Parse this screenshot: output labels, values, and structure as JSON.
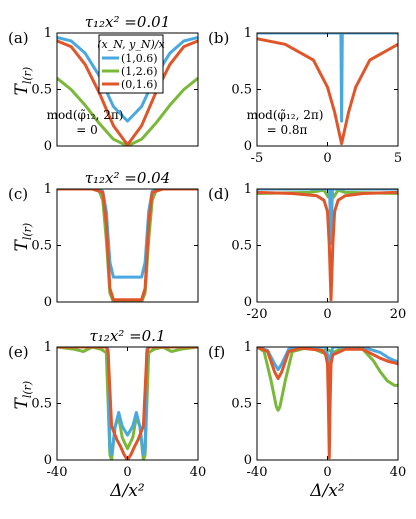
{
  "figure": {
    "ylabel": "T_{l(r)}",
    "xlabel": "Δ/x²",
    "legend_title": "(x_N, y_N)/x",
    "legend": [
      "(1,0.6)",
      "(1,2.6)",
      "(0,1.6)"
    ],
    "colors": [
      "#4aa8e0",
      "#7ab83a",
      "#e0562a"
    ]
  },
  "chart_data": [
    {
      "type": "line",
      "panel": "(a)",
      "title": "τ₁₂x² =0.01",
      "xlim": [
        -1,
        1
      ],
      "ylim": [
        0,
        1
      ],
      "xticks": [],
      "yticks": [
        0,
        0.5,
        1
      ],
      "annotation": [
        "mod(φ̃₁₂, 2π)",
        "= 0"
      ],
      "series": [
        {
          "name": "(1,0.6)",
          "x": [
            -1,
            -0.8,
            -0.6,
            -0.4,
            -0.2,
            0,
            0.2,
            0.4,
            0.6,
            0.8,
            1
          ],
          "y": [
            0.96,
            0.93,
            0.82,
            0.62,
            0.35,
            0.22,
            0.35,
            0.62,
            0.82,
            0.93,
            0.96
          ]
        },
        {
          "name": "(1,2.6)",
          "x": [
            -1,
            -0.8,
            -0.6,
            -0.4,
            -0.2,
            0,
            0.2,
            0.4,
            0.6,
            0.8,
            1
          ],
          "y": [
            0.6,
            0.5,
            0.36,
            0.2,
            0.06,
            0,
            0.06,
            0.2,
            0.36,
            0.5,
            0.6
          ]
        },
        {
          "name": "(0,1.6)",
          "x": [
            -1,
            -0.8,
            -0.6,
            -0.4,
            -0.2,
            0,
            0.2,
            0.4,
            0.6,
            0.8,
            1
          ],
          "y": [
            0.93,
            0.88,
            0.72,
            0.47,
            0.18,
            0.01,
            0.18,
            0.47,
            0.72,
            0.88,
            0.93
          ]
        }
      ]
    },
    {
      "type": "line",
      "panel": "(b)",
      "title": "",
      "xlim": [
        -5,
        5
      ],
      "ylim": [
        0,
        1
      ],
      "xticks": [
        -5,
        0,
        5
      ],
      "yticks": [
        0,
        0.5,
        1
      ],
      "annotation": [
        "mod(φ̃₁₂, 2π)",
        "= 0.8π"
      ],
      "series": [
        {
          "name": "(1,0.6)",
          "x": [
            -5,
            0.95,
            1,
            1.05,
            5
          ],
          "y": [
            1,
            1,
            0.22,
            1,
            1
          ]
        },
        {
          "name": "(1,2.6)",
          "x": [
            -5,
            5
          ],
          "y": [
            1,
            1
          ]
        },
        {
          "name": "(0,1.6)",
          "x": [
            -5,
            -3,
            -1,
            0,
            0.5,
            1,
            1.5,
            2,
            3,
            5
          ],
          "y": [
            0.95,
            0.9,
            0.76,
            0.52,
            0.3,
            0.02,
            0.3,
            0.52,
            0.76,
            0.9
          ]
        }
      ]
    },
    {
      "type": "line",
      "panel": "(c)",
      "title": "τ₁₂x² =0.04",
      "xlim": [
        -40,
        40
      ],
      "ylim": [
        0,
        1
      ],
      "xticks": [],
      "yticks": [
        0,
        0.5,
        1
      ],
      "series": [
        {
          "name": "(1,0.6)",
          "x": [
            -40,
            -20,
            -14,
            -12,
            -10,
            -8,
            8,
            10,
            12,
            14,
            20,
            40
          ],
          "y": [
            1,
            1,
            0.98,
            0.8,
            0.35,
            0.22,
            0.22,
            0.35,
            0.8,
            0.98,
            1,
            1
          ]
        },
        {
          "name": "(1,2.6)",
          "x": [
            -40,
            -20,
            -16,
            -14,
            -12,
            -10,
            -8,
            8,
            10,
            12,
            14,
            16,
            20,
            40
          ],
          "y": [
            1,
            1,
            0.98,
            0.9,
            0.55,
            0.08,
            0,
            0,
            0.08,
            0.55,
            0.9,
            0.98,
            1,
            1
          ]
        },
        {
          "name": "(0,1.6)",
          "x": [
            -40,
            -20,
            -14,
            -12,
            -10,
            -8,
            8,
            10,
            12,
            14,
            20,
            40
          ],
          "y": [
            1,
            1,
            0.97,
            0.7,
            0.12,
            0.02,
            0.02,
            0.12,
            0.7,
            0.97,
            1,
            1
          ]
        }
      ]
    },
    {
      "type": "line",
      "panel": "(d)",
      "title": "",
      "xlim": [
        -20,
        20
      ],
      "ylim": [
        0,
        1
      ],
      "xticks": [
        -20,
        0,
        20
      ],
      "yticks": [
        0,
        0.5,
        1
      ],
      "series": [
        {
          "name": "(1,0.6)",
          "x": [
            -20,
            0.6,
            1,
            1.4,
            20
          ],
          "y": [
            1,
            1,
            0.52,
            1,
            1
          ]
        },
        {
          "name": "(1,2.6)",
          "x": [
            -20,
            -5,
            -1,
            0.2,
            1,
            1.8,
            3,
            5,
            20
          ],
          "y": [
            0.96,
            0.97,
            0.99,
            0.93,
            1,
            0.93,
            0.99,
            0.97,
            0.96
          ]
        },
        {
          "name": "(0,1.6)",
          "x": [
            -20,
            -10,
            -3,
            -1,
            0,
            0.5,
            1,
            1.5,
            2,
            3,
            5,
            10,
            20
          ],
          "y": [
            0.97,
            0.96,
            0.94,
            0.9,
            0.8,
            0.5,
            0.02,
            0.5,
            0.8,
            0.9,
            0.94,
            0.96,
            0.97
          ]
        }
      ]
    },
    {
      "type": "line",
      "panel": "(e)",
      "title": "τ₁₂x² =0.1",
      "xlim": [
        -40,
        40
      ],
      "ylim": [
        0,
        1
      ],
      "xticks": [
        -40,
        0,
        40
      ],
      "yticks": [
        0,
        0.5,
        1
      ],
      "series": [
        {
          "name": "(1,0.6)",
          "x": [
            -40,
            -12,
            -11,
            -10,
            -9,
            -7,
            -5,
            -3,
            0,
            3,
            5,
            7,
            9,
            10,
            11,
            12,
            40
          ],
          "y": [
            1,
            1,
            0.98,
            0.1,
            0.05,
            0.3,
            0.42,
            0.3,
            0.22,
            0.3,
            0.42,
            0.3,
            0.05,
            0.1,
            0.98,
            1,
            1
          ]
        },
        {
          "name": "(1,2.6)",
          "x": [
            -40,
            -30,
            -25,
            -20,
            -15,
            -12,
            -10,
            -9,
            -7,
            -5,
            -3,
            0,
            3,
            5,
            7,
            9,
            10,
            12,
            15,
            20,
            25,
            30,
            40
          ],
          "y": [
            1,
            0.98,
            0.96,
            1,
            0.98,
            0.95,
            0.05,
            0,
            0.3,
            0.38,
            0.2,
            0.1,
            0.2,
            0.38,
            0.3,
            0,
            0.05,
            0.95,
            0.98,
            1,
            0.96,
            0.98,
            1
          ]
        },
        {
          "name": "(0,1.6)",
          "x": [
            -40,
            -12,
            -11,
            -9,
            -6,
            -4,
            -2,
            0,
            2,
            4,
            6,
            9,
            11,
            12,
            40
          ],
          "y": [
            1,
            1,
            0.95,
            0.3,
            0.18,
            0.12,
            0.05,
            0,
            0.05,
            0.12,
            0.18,
            0.3,
            0.95,
            1,
            1
          ]
        }
      ]
    },
    {
      "type": "line",
      "panel": "(f)",
      "title": "",
      "xlim": [
        -40,
        40
      ],
      "ylim": [
        0,
        1
      ],
      "xticks": [
        -40,
        0,
        40
      ],
      "yticks": [
        0,
        0.5,
        1
      ],
      "series": [
        {
          "name": "(1,0.6)",
          "x": [
            -40,
            -34,
            -30,
            -28,
            -26,
            -22,
            -10,
            -1,
            0.5,
            1,
            1.5,
            3,
            20,
            30,
            35,
            38,
            40
          ],
          "y": [
            1,
            0.97,
            0.85,
            0.8,
            0.85,
            0.98,
            1,
            1,
            0.9,
            0.5,
            0.9,
            1,
            1,
            0.95,
            0.9,
            0.88,
            0.87
          ]
        },
        {
          "name": "(1,2.6)",
          "x": [
            -40,
            -36,
            -32,
            -29,
            -28,
            -27,
            -24,
            -20,
            -10,
            -3,
            -1,
            1,
            3,
            10,
            20,
            26,
            30,
            34,
            38,
            40
          ],
          "y": [
            1,
            0.96,
            0.7,
            0.47,
            0.44,
            0.47,
            0.7,
            0.96,
            1,
            0.95,
            0.98,
            0.97,
            0.95,
            1,
            0.98,
            0.88,
            0.78,
            0.7,
            0.66,
            0.66
          ]
        },
        {
          "name": "(0,1.6)",
          "x": [
            -40,
            -34,
            -30,
            -28,
            -26,
            -22,
            -15,
            -3,
            -1,
            0,
            0.5,
            1,
            1.5,
            2,
            3,
            10,
            20,
            30,
            35,
            38,
            40
          ],
          "y": [
            1,
            0.96,
            0.78,
            0.72,
            0.78,
            0.96,
            0.99,
            0.97,
            0.93,
            0.85,
            0.5,
            0.02,
            0.5,
            0.85,
            0.93,
            0.98,
            0.98,
            0.9,
            0.87,
            0.86,
            0.85
          ]
        }
      ]
    }
  ]
}
